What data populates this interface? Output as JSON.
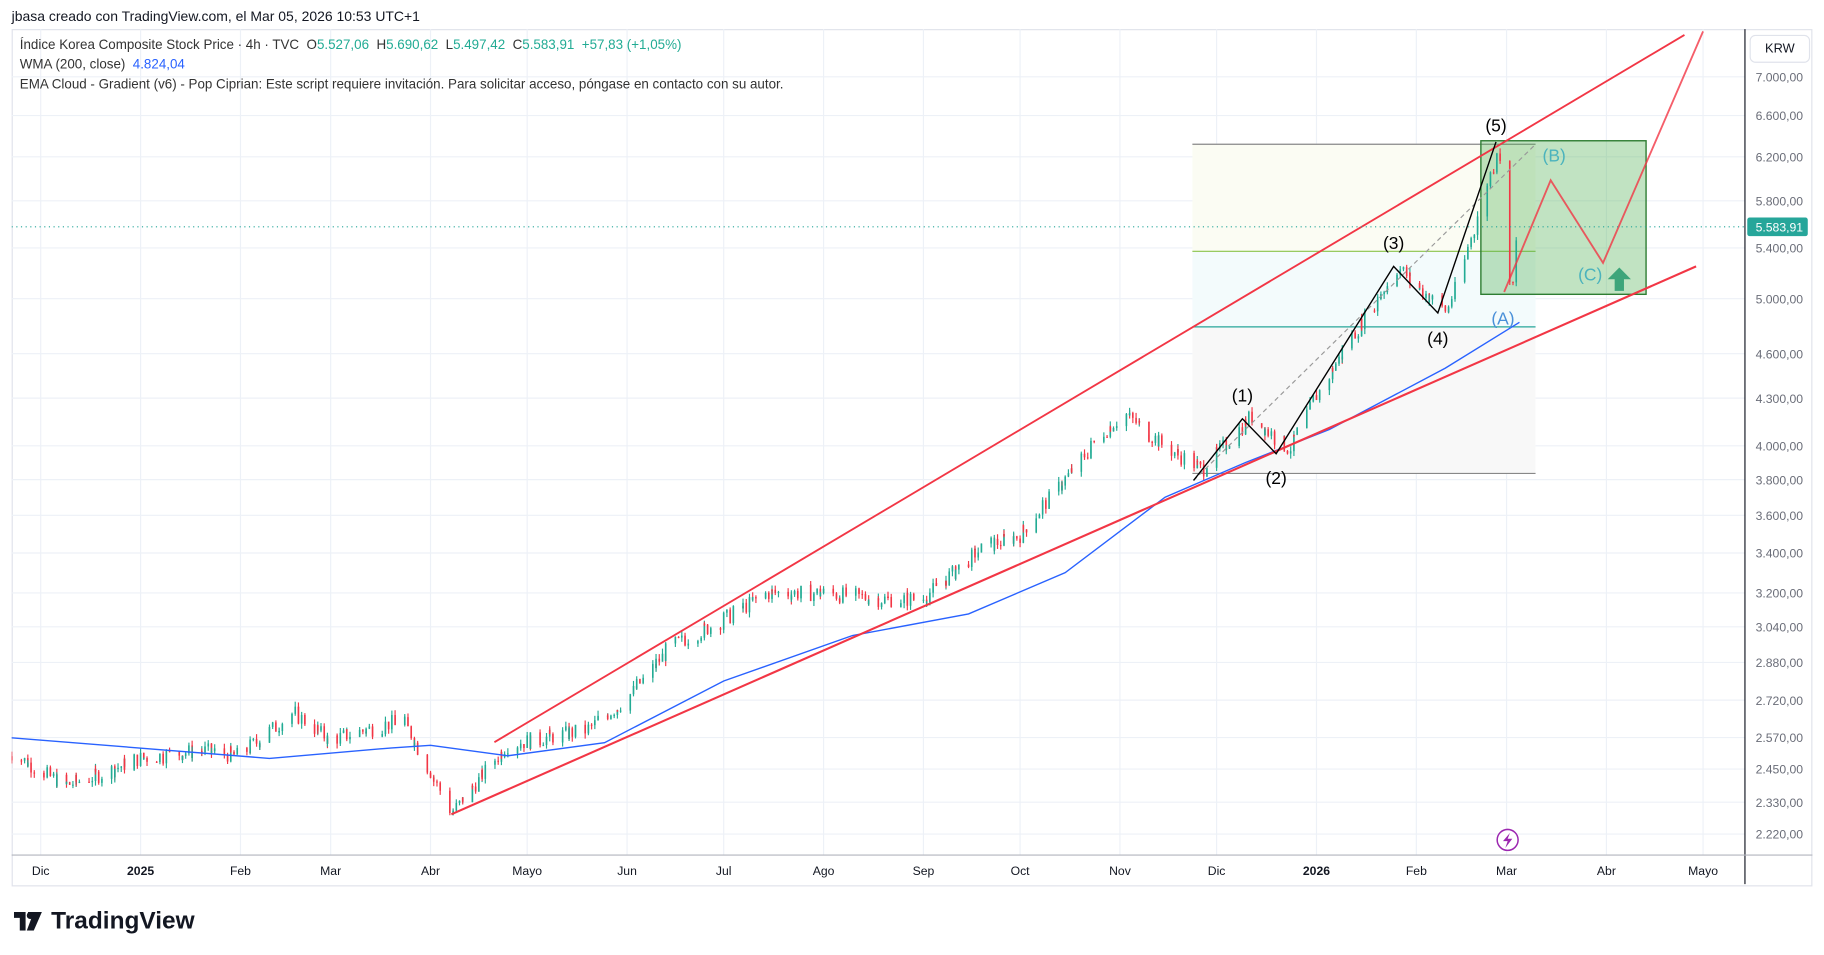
{
  "header": {
    "attribution": "jbasa creado con TradingView.com, el Mar 05, 2026 10:53 UTC+1"
  },
  "legend": {
    "symbol": "Índice Korea Composite Stock Price · 4h · TVC",
    "o_label": "O",
    "o": "5.527,06",
    "h_label": "H",
    "h": "5.690,62",
    "l_label": "L",
    "l": "5.497,42",
    "c_label": "C",
    "c": "5.583,91",
    "change": "+57,83 (+1,05%)",
    "wma_label": "WMA (200, close)",
    "wma_value": "4.824,04",
    "ema_cloud": "EMA Cloud - Gradient (v6) - Pop Ciprian: Este script requiere invitación. Para solicitar acceso, póngase en contacto con su autor."
  },
  "currency": "KRW",
  "brand": "TradingView",
  "colors": {
    "up": "#22ab94",
    "down": "#f23645",
    "wma": "#2962ff",
    "channel": "#f23645",
    "wave": "#000000",
    "box": "#4caf50",
    "abc": "#4bb3bd",
    "price_badge": "#26a69a"
  },
  "chart_data": {
    "type": "candlestick",
    "log_scale": true,
    "ylim": [
      2150,
      7300
    ],
    "y_ticks": [
      {
        "v": 7000,
        "t": "7.000,00"
      },
      {
        "v": 6600,
        "t": "6.600,00"
      },
      {
        "v": 6200,
        "t": "6.200,00"
      },
      {
        "v": 5800,
        "t": "5.800,00"
      },
      {
        "v": 5400,
        "t": "5.400,00"
      },
      {
        "v": 5000,
        "t": "5.000,00"
      },
      {
        "v": 4600,
        "t": "4.600,00"
      },
      {
        "v": 4300,
        "t": "4.300,00"
      },
      {
        "v": 4000,
        "t": "4.000,00"
      },
      {
        "v": 3800,
        "t": "3.800,00"
      },
      {
        "v": 3600,
        "t": "3.600,00"
      },
      {
        "v": 3400,
        "t": "3.400,00"
      },
      {
        "v": 3200,
        "t": "3.200,00"
      },
      {
        "v": 3040,
        "t": "3.040,00"
      },
      {
        "v": 2880,
        "t": "2.880,00"
      },
      {
        "v": 2720,
        "t": "2.720,00"
      },
      {
        "v": 2570,
        "t": "2.570,00"
      },
      {
        "v": 2450,
        "t": "2.450,00"
      },
      {
        "v": 2330,
        "t": "2.330,00"
      },
      {
        "v": 2220,
        "t": "2.220,00"
      }
    ],
    "x_ticks": [
      {
        "d": "2024-12-01",
        "t": "Dic"
      },
      {
        "d": "2025-01-01",
        "t": "2025",
        "bold": true
      },
      {
        "d": "2025-02-01",
        "t": "Feb"
      },
      {
        "d": "2025-03-01",
        "t": "Mar"
      },
      {
        "d": "2025-04-01",
        "t": "Abr"
      },
      {
        "d": "2025-05-01",
        "t": "Mayo"
      },
      {
        "d": "2025-06-01",
        "t": "Jun"
      },
      {
        "d": "2025-07-01",
        "t": "Jul"
      },
      {
        "d": "2025-08-01",
        "t": "Ago"
      },
      {
        "d": "2025-09-01",
        "t": "Sep"
      },
      {
        "d": "2025-10-01",
        "t": "Oct"
      },
      {
        "d": "2025-11-01",
        "t": "Nov"
      },
      {
        "d": "2025-12-01",
        "t": "Dic"
      },
      {
        "d": "2026-01-01",
        "t": "2026",
        "bold": true
      },
      {
        "d": "2026-02-01",
        "t": "Feb"
      },
      {
        "d": "2026-03-01",
        "t": "Mar"
      },
      {
        "d": "2026-04-01",
        "t": "Abr"
      },
      {
        "d": "2026-05-01",
        "t": "Mayo"
      }
    ],
    "price_path": [
      [
        "2024-11-21",
        2520
      ],
      [
        "2024-12-09",
        2390
      ],
      [
        "2024-12-20",
        2430
      ],
      [
        "2025-01-01",
        2490
      ],
      [
        "2025-01-20",
        2520
      ],
      [
        "2025-02-01",
        2500
      ],
      [
        "2025-02-18",
        2670
      ],
      [
        "2025-03-01",
        2560
      ],
      [
        "2025-03-24",
        2640
      ],
      [
        "2025-04-08",
        2290
      ],
      [
        "2025-04-25",
        2540
      ],
      [
        "2025-05-20",
        2600
      ],
      [
        "2025-06-01",
        2720
      ],
      [
        "2025-06-15",
        2950
      ],
      [
        "2025-07-01",
        3070
      ],
      [
        "2025-07-15",
        3200
      ],
      [
        "2025-08-01",
        3200
      ],
      [
        "2025-08-20",
        3170
      ],
      [
        "2025-09-01",
        3170
      ],
      [
        "2025-09-20",
        3430
      ],
      [
        "2025-10-01",
        3490
      ],
      [
        "2025-10-28",
        4100
      ],
      [
        "2025-11-03",
        4200
      ],
      [
        "2025-11-15",
        4000
      ],
      [
        "2025-11-27",
        3860
      ],
      [
        "2025-12-12",
        4180
      ],
      [
        "2025-12-24",
        3980
      ],
      [
        "2026-01-01",
        4300
      ],
      [
        "2026-01-12",
        4700
      ],
      [
        "2026-01-27",
        5250
      ],
      [
        "2026-02-01",
        5100
      ],
      [
        "2026-02-11",
        4900
      ],
      [
        "2026-02-20",
        5600
      ],
      [
        "2026-02-27",
        6300
      ],
      [
        "2026-03-03",
        5050
      ],
      [
        "2026-03-05",
        5584
      ]
    ],
    "wma_path": [
      [
        "2024-11-21",
        2570
      ],
      [
        "2025-02-10",
        2490
      ],
      [
        "2025-03-20",
        2530
      ],
      [
        "2025-04-01",
        2540
      ],
      [
        "2025-04-25",
        2500
      ],
      [
        "2025-05-25",
        2550
      ],
      [
        "2025-07-01",
        2800
      ],
      [
        "2025-08-10",
        3000
      ],
      [
        "2025-09-15",
        3100
      ],
      [
        "2025-10-15",
        3300
      ],
      [
        "2025-11-15",
        3700
      ],
      [
        "2025-12-10",
        3900
      ],
      [
        "2026-01-05",
        4100
      ],
      [
        "2026-02-10",
        4500
      ],
      [
        "2026-03-05",
        4824
      ]
    ],
    "last_price": {
      "value": 5583.91,
      "label": "5.583,91"
    },
    "wave_labels": [
      "(1)",
      "(2)",
      "(3)",
      "(4)",
      "(5)",
      "(A)",
      "(B)",
      "(C)"
    ]
  }
}
